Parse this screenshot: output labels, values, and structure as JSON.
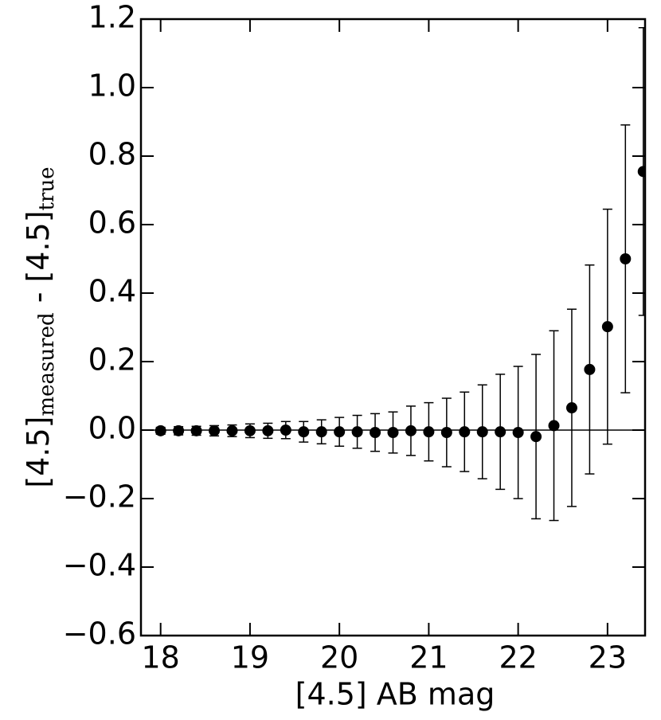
{
  "chart_data": {
    "type": "errorbar",
    "x_label": "[4.5] AB mag",
    "y_label_parts": [
      "[4.5]",
      "measured",
      " - [4.5]",
      "true"
    ],
    "x": [
      18.0,
      18.2,
      18.4,
      18.6,
      18.8,
      19.0,
      19.2,
      19.4,
      19.6,
      19.8,
      20.0,
      20.2,
      20.4,
      20.6,
      20.8,
      21.0,
      21.2,
      21.4,
      21.6,
      21.8,
      22.0,
      22.2,
      22.4,
      22.6,
      22.8,
      23.0,
      23.2,
      23.4
    ],
    "values": [
      -0.002,
      -0.002,
      -0.002,
      -0.002,
      -0.002,
      -0.002,
      -0.002,
      0.0,
      -0.005,
      -0.005,
      -0.005,
      -0.005,
      -0.007,
      -0.007,
      -0.002,
      -0.005,
      -0.007,
      -0.005,
      -0.005,
      -0.005,
      -0.007,
      -0.019,
      0.013,
      0.065,
      0.177,
      0.302,
      0.5,
      0.755
    ],
    "errors": [
      0.01,
      0.012,
      0.013,
      0.015,
      0.017,
      0.02,
      0.022,
      0.025,
      0.03,
      0.035,
      0.042,
      0.048,
      0.055,
      0.06,
      0.072,
      0.085,
      0.1,
      0.116,
      0.137,
      0.168,
      0.193,
      0.24,
      0.277,
      0.288,
      0.305,
      0.343,
      0.391,
      0.42
    ],
    "color": "#000000",
    "reference_line": 0,
    "xlim": [
      17.78,
      23.42
    ],
    "ylim": [
      -0.6,
      1.2
    ],
    "xticks": [
      18,
      19,
      20,
      21,
      22,
      23
    ],
    "yticks": [
      {
        "value": -0.6,
        "label": "−0.6"
      },
      {
        "value": -0.4,
        "label": "−0.4"
      },
      {
        "value": -0.2,
        "label": "−0.2"
      },
      {
        "value": 0,
        "label": "0.0"
      },
      0.2,
      0.4,
      0.6,
      0.8,
      {
        "value": 1,
        "label": "1.0"
      },
      1.2
    ],
    "grid": false
  }
}
